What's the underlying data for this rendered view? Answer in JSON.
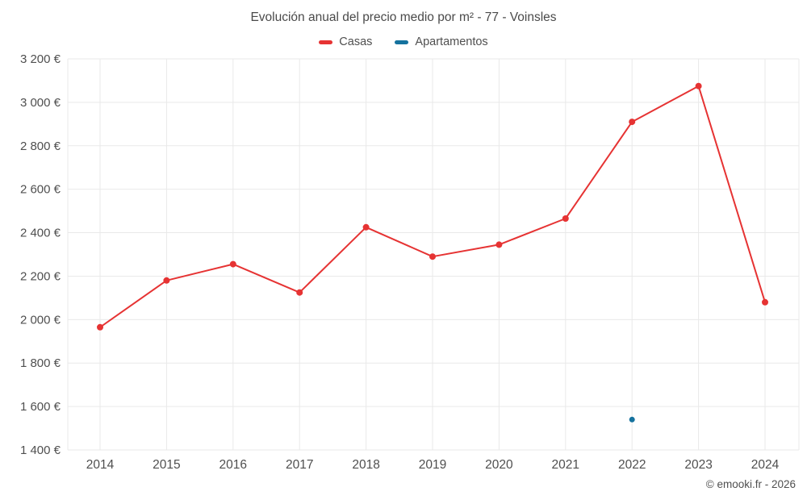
{
  "title": "Evolución anual del precio medio por m² - 77 - Voinsles",
  "legend": [
    {
      "label": "Casas",
      "color": "#e63333"
    },
    {
      "label": "Apartamentos",
      "color": "#15729e"
    }
  ],
  "copyright": "© emooki.fr - 2026",
  "chart_data": {
    "type": "line",
    "x": [
      2014,
      2015,
      2016,
      2017,
      2018,
      2019,
      2020,
      2021,
      2022,
      2023,
      2024
    ],
    "series": [
      {
        "name": "Casas",
        "color": "#e63333",
        "values": [
          1965,
          2180,
          2255,
          2125,
          2425,
          2290,
          2345,
          2465,
          2910,
          3075,
          2080
        ]
      },
      {
        "name": "Apartamentos",
        "color": "#15729e",
        "values": [
          null,
          null,
          null,
          null,
          null,
          null,
          null,
          null,
          1540,
          null,
          null
        ]
      }
    ],
    "title": "Evolución anual del precio medio por m² - 77 - Voinsles",
    "xlabel": "",
    "ylabel": "",
    "y_unit": "€",
    "ylim": [
      1400,
      3200
    ],
    "ytick_step": 200,
    "grid": true,
    "grid_color": "#e9e9e9",
    "axis_text_color": "#4f4f4f",
    "legend_position": "top"
  }
}
